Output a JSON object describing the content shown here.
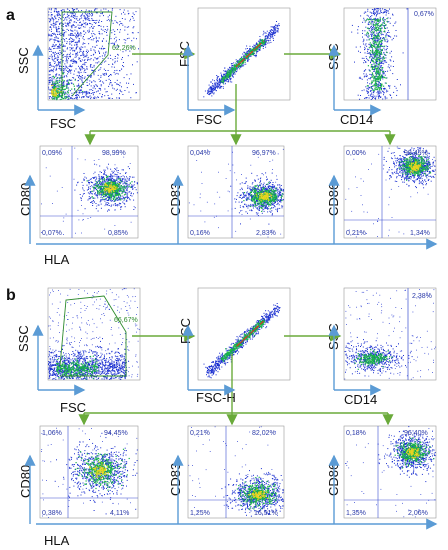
{
  "panels": [
    {
      "letter": "a",
      "row1": [
        {
          "ylabel": "SSC",
          "xlabel": "FSC",
          "stat": "62,26%"
        },
        {
          "ylabel": "FSC",
          "xlabel": "FSC"
        },
        {
          "ylabel": "SSC",
          "xlabel": "CD14",
          "stat": "0,67%"
        }
      ],
      "row2": [
        {
          "ylabel": "CD80",
          "q": [
            "0,09%",
            "98,99%",
            "0,07%",
            "0,85%"
          ]
        },
        {
          "ylabel": "CD83",
          "q": [
            "0,04%",
            "96,97%",
            "0,16%",
            "2,83%"
          ]
        },
        {
          "ylabel": "CD86",
          "q": [
            "0,00%",
            "98,45%",
            "0,21%",
            "1,34%"
          ]
        }
      ],
      "shared_xlabel": "HLA"
    },
    {
      "letter": "b",
      "row1": [
        {
          "ylabel": "SSC",
          "xlabel": "FSC",
          "stat": "66,67%"
        },
        {
          "ylabel": "FSC",
          "xlabel": "FSC-H"
        },
        {
          "ylabel": "SSC",
          "xlabel": "CD14",
          "stat": "2,38%"
        }
      ],
      "row2": [
        {
          "ylabel": "CD80",
          "q": [
            "1,06%",
            "94,45%",
            "0,38%",
            "4,11%"
          ]
        },
        {
          "ylabel": "CD83",
          "q": [
            "0,21%",
            "82,02%",
            "1,25%",
            "16,51%"
          ]
        },
        {
          "ylabel": "CD86",
          "q": [
            "0,18%",
            "96,40%",
            "1,35%",
            "2,06%"
          ]
        }
      ],
      "shared_xlabel": "HLA"
    }
  ],
  "colors": {
    "arrow": "#6aaa3a",
    "axis": "#5b9bd5",
    "density_low": "#1a2fd0",
    "density_mid": "#19b24a",
    "density_high": "#e8d420",
    "gate": "#2e8b2e"
  }
}
